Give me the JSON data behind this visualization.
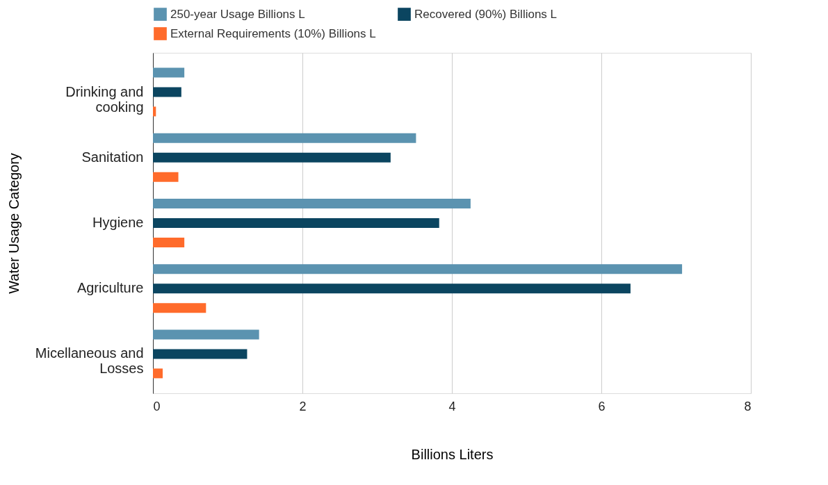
{
  "chart_data": {
    "type": "bar",
    "orientation": "horizontal",
    "xlabel": "Billions Liters",
    "ylabel": "Water Usage Category",
    "categories": [
      "Drinking and\ncooking",
      "Sanitation",
      "Hygiene",
      "Agriculture",
      "Micellaneous and\nLosses"
    ],
    "series": [
      {
        "name": "250-year Usage Billions L",
        "color": "#5b93b0",
        "values": [
          0.42,
          3.52,
          4.25,
          7.08,
          1.42
        ]
      },
      {
        "name": "Recovered (90%) Billions L",
        "color": "#0b4560",
        "values": [
          0.38,
          3.18,
          3.83,
          6.39,
          1.26
        ]
      },
      {
        "name": "External Requirements (10%) Billions L",
        "color": "#ff6b2b",
        "values": [
          0.04,
          0.34,
          0.42,
          0.71,
          0.13
        ]
      }
    ],
    "xlim": [
      0,
      8
    ],
    "xticks": [
      0,
      2,
      4,
      6,
      8
    ],
    "grid": "x",
    "legend": "top"
  }
}
